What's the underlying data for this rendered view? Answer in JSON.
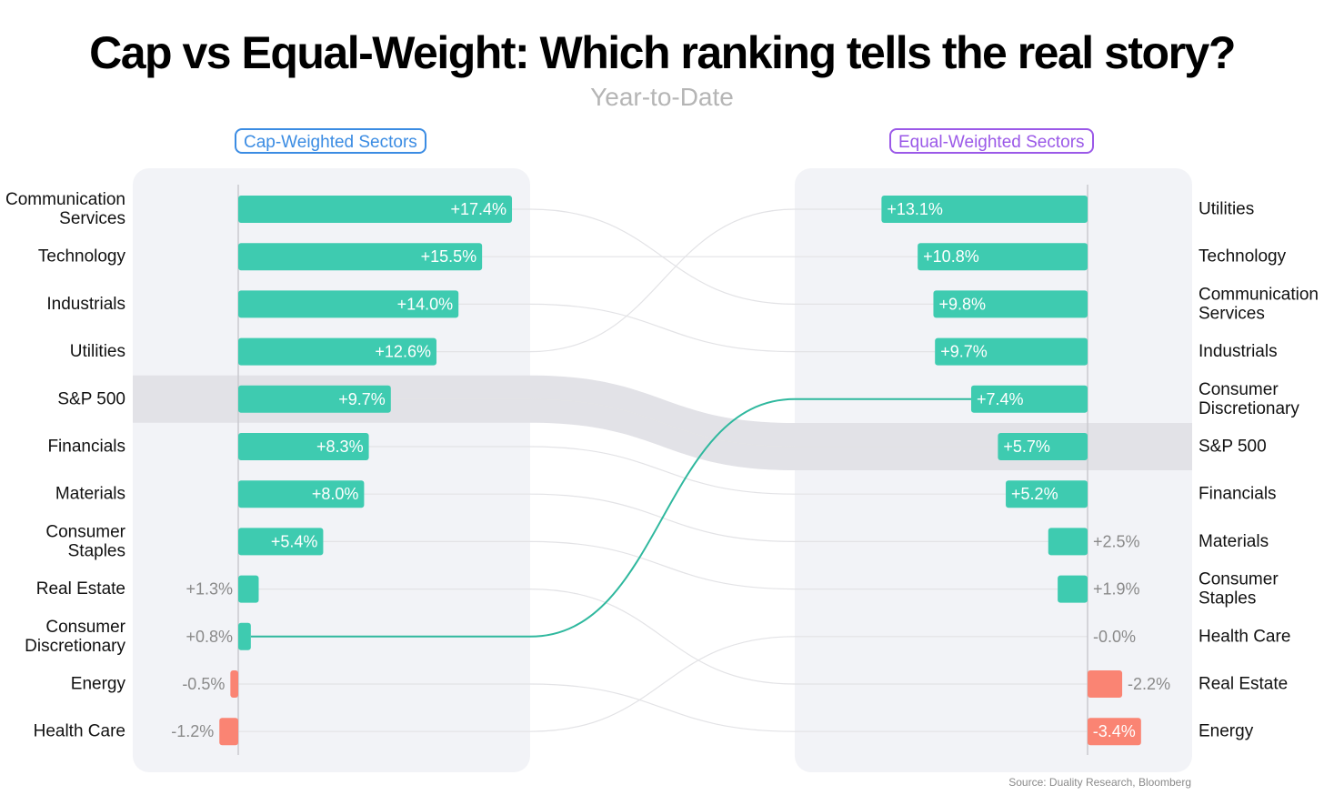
{
  "title": "Cap vs Equal-Weight: Which ranking tells the real story?",
  "subtitle": "Year-to-Date",
  "left_header": "Cap-Weighted Sectors",
  "right_header": "Equal-Weighted Sectors",
  "source": "Source: Duality Research, Bloomberg",
  "colors": {
    "positive": "#3ecbb0",
    "negative": "#fa8473",
    "panel": "#f2f3f7",
    "highlight_band": "#e2e2e7",
    "left_header": "#3b8ce3",
    "right_header": "#9b59e8",
    "highlight_link": "#2fb89e",
    "link": "#e3e3e6"
  },
  "chart_data": {
    "type": "bar",
    "title": "Cap vs Equal-Weight: Which ranking tells the real story?",
    "subtitle": "Year-to-Date",
    "unit": "%",
    "highlight_band": "S&P 500",
    "highlight_link": "Consumer Discretionary",
    "left": {
      "name": "Cap-Weighted Sectors",
      "categories": [
        [
          "Communication",
          "Services"
        ],
        [
          "Technology"
        ],
        [
          "Industrials"
        ],
        [
          "Utilities"
        ],
        [
          "S&P 500"
        ],
        [
          "Financials"
        ],
        [
          "Materials"
        ],
        [
          "Consumer",
          "Staples"
        ],
        [
          "Real Estate"
        ],
        [
          "Consumer",
          "Discretionary"
        ],
        [
          "Energy"
        ],
        [
          "Health Care"
        ]
      ],
      "values": [
        17.4,
        15.5,
        14.0,
        12.6,
        9.7,
        8.3,
        8.0,
        5.4,
        1.3,
        0.8,
        -0.5,
        -1.2
      ],
      "labels": [
        "+17.4%",
        "+15.5%",
        "+14.0%",
        "+12.6%",
        "+9.7%",
        "+8.3%",
        "+8.0%",
        "+5.4%",
        "+1.3%",
        "+0.8%",
        "-0.5%",
        "-1.2%"
      ]
    },
    "right": {
      "name": "Equal-Weighted Sectors",
      "categories": [
        [
          "Utilities"
        ],
        [
          "Technology"
        ],
        [
          "Communication",
          "Services"
        ],
        [
          "Industrials"
        ],
        [
          "Consumer",
          "Discretionary"
        ],
        [
          "S&P 500"
        ],
        [
          "Financials"
        ],
        [
          "Materials"
        ],
        [
          "Consumer",
          "Staples"
        ],
        [
          "Health Care"
        ],
        [
          "Real Estate"
        ],
        [
          "Energy"
        ]
      ],
      "values": [
        13.1,
        10.8,
        9.8,
        9.7,
        7.4,
        5.7,
        5.2,
        2.5,
        1.9,
        0.0,
        -2.2,
        -3.4
      ],
      "labels": [
        "+13.1%",
        "+10.8%",
        "+9.8%",
        "+9.7%",
        "+7.4%",
        "+5.7%",
        "+5.2%",
        "+2.5%",
        "+1.9%",
        "-0.0%",
        "-2.2%",
        "-3.4%"
      ]
    }
  }
}
